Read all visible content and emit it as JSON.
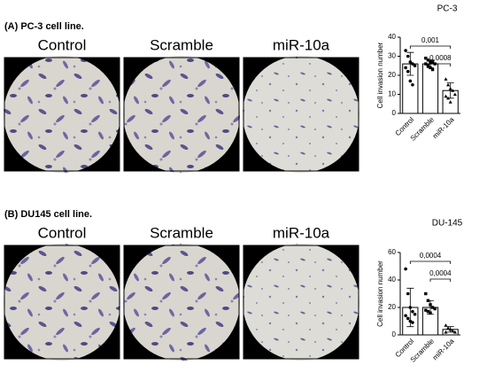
{
  "panels": [
    {
      "label": "(A) PC-3 cell line.",
      "images": [
        "Control",
        "Scramble",
        "miR-10a"
      ]
    },
    {
      "label": "(B) DU145 cell line.",
      "images": [
        "Control",
        "Scramble",
        "miR-10a"
      ]
    }
  ],
  "chart_data": [
    {
      "type": "bar",
      "title": "PC-3",
      "y_label": "Cell invasion number",
      "categories": [
        "Control",
        "Scramble",
        "miR-10a"
      ],
      "values": [
        26,
        26,
        12
      ],
      "errors": [
        6,
        2,
        4
      ],
      "points": [
        [
          33,
          30,
          27,
          26,
          25,
          24,
          22,
          17,
          15
        ],
        [
          29,
          28,
          27,
          27,
          26,
          26,
          25,
          24,
          23
        ],
        [
          18,
          15,
          13,
          12,
          10,
          9,
          8,
          6
        ]
      ],
      "annotations": [
        "0,001",
        "0,0008"
      ],
      "ylim": [
        0,
        40
      ],
      "yticks": [
        0,
        10,
        20,
        30,
        40
      ],
      "color": "#ffffff"
    },
    {
      "type": "bar",
      "title": "DU-145",
      "y_label": "Cell invasion number",
      "categories": [
        "Control",
        "Scramble",
        "miR-10a"
      ],
      "values": [
        20,
        20,
        4
      ],
      "errors": [
        14,
        5,
        2
      ],
      "points": [
        [
          48,
          30,
          20,
          17,
          15,
          14,
          12,
          10,
          9
        ],
        [
          30,
          25,
          22,
          20,
          19,
          18,
          17,
          16
        ],
        [
          7,
          5,
          4,
          3,
          2,
          2
        ]
      ],
      "annotations": [
        "0,0004",
        "0,0004"
      ],
      "ylim": [
        0,
        60
      ],
      "yticks": [
        0,
        20,
        40,
        60
      ],
      "color": "#ffffff"
    }
  ]
}
